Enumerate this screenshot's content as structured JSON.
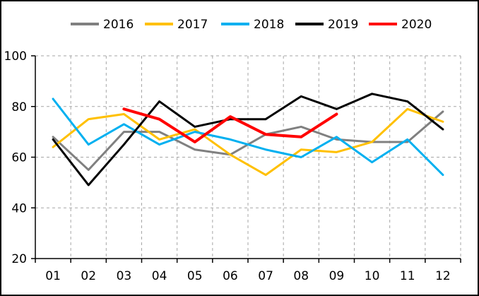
{
  "chart_data": {
    "type": "line",
    "categories": [
      "01",
      "02",
      "03",
      "04",
      "05",
      "06",
      "07",
      "08",
      "09",
      "10",
      "11",
      "12"
    ],
    "ylim": [
      20,
      100
    ],
    "yticks": [
      20,
      40,
      60,
      80,
      100
    ],
    "grid": true,
    "legend": "top",
    "series": [
      {
        "name": "2016",
        "color": "#808080",
        "values": [
          68,
          55,
          70,
          70,
          63,
          61,
          69,
          72,
          67,
          66,
          66,
          78
        ]
      },
      {
        "name": "2017",
        "color": "#FFC000",
        "values": [
          64,
          75,
          77,
          67,
          71,
          61,
          53,
          63,
          62,
          66,
          79,
          74
        ]
      },
      {
        "name": "2018",
        "color": "#00B0F0",
        "values": [
          83,
          65,
          73,
          65,
          70,
          67,
          63,
          60,
          68,
          58,
          67,
          53
        ]
      },
      {
        "name": "2019",
        "color": "#000000",
        "values": [
          67,
          49,
          65,
          82,
          72,
          75,
          75,
          84,
          79,
          85,
          82,
          71
        ]
      },
      {
        "name": "2020",
        "color": "#FF0000",
        "values": [
          null,
          null,
          79,
          75,
          66,
          76,
          69,
          68,
          77,
          null,
          null,
          null
        ]
      }
    ]
  }
}
